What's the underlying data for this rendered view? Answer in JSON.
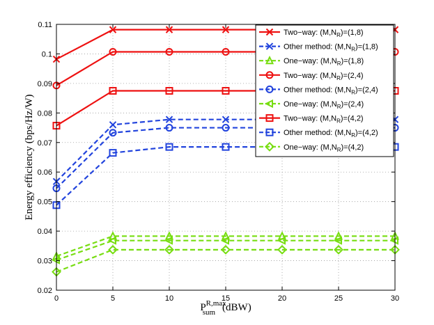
{
  "chart_data": {
    "type": "line",
    "title": "",
    "xlabel": {
      "main": "P",
      "superscript": "R,max",
      "subscript": "sum",
      "unit": "(dBW)"
    },
    "ylabel": "Energy efficiency (bps/Hz/W)",
    "x": [
      0,
      5,
      10,
      15,
      20,
      25,
      30
    ],
    "xlim": [
      0,
      30
    ],
    "ylim": [
      0.02,
      0.11
    ],
    "xticks": [
      "0",
      "5",
      "10",
      "15",
      "20",
      "25",
      "30"
    ],
    "yticks": [
      "0.02",
      "0.03",
      "0.04",
      "0.05",
      "0.06",
      "0.07",
      "0.08",
      "0.09",
      "0.1",
      "0.11"
    ],
    "grid": true,
    "legend_position": "top-right",
    "series": [
      {
        "name": "Two-way: (M,N_R)=(1,8)",
        "label_prefix": "Two−way: (M,N",
        "label_sub": "R",
        "label_suffix": ")=(1,8)",
        "color": "#ee1111",
        "dash": "solid",
        "marker": "x",
        "values": [
          0.0982,
          0.1082,
          0.1082,
          0.1082,
          0.1082,
          0.1082,
          0.1082
        ]
      },
      {
        "name": "Other method: (M,N_R)=(1,8)",
        "label_prefix": "Other method: (M,N",
        "label_sub": "R",
        "label_suffix": ")=(1,8)",
        "color": "#2244dd",
        "dash": "dashed",
        "marker": "x",
        "values": [
          0.0568,
          0.076,
          0.0778,
          0.0778,
          0.0778,
          0.0778,
          0.0778
        ]
      },
      {
        "name": "One-way: (M,N_R)=(1,8)",
        "label_prefix": "One−way: (M,N",
        "label_sub": "R",
        "label_suffix": ")=(1,8)",
        "color": "#77dd11",
        "dash": "dashed",
        "marker": "triangle-up",
        "values": [
          0.0315,
          0.0383,
          0.0383,
          0.0383,
          0.0383,
          0.0383,
          0.0383
        ]
      },
      {
        "name": "Two-way: (M,N_R)=(2,4)",
        "label_prefix": "Two−way: (M,N",
        "label_sub": "R",
        "label_suffix": ")=(2,4)",
        "color": "#ee1111",
        "dash": "solid",
        "marker": "circle",
        "values": [
          0.0893,
          0.1007,
          0.1007,
          0.1007,
          0.1007,
          0.1007,
          0.1007
        ]
      },
      {
        "name": "Other method: (M,N_R)=(2,4)",
        "label_prefix": "Other method: (M,N",
        "label_sub": "R",
        "label_suffix": ")=(2,4)",
        "color": "#2244dd",
        "dash": "dashed",
        "marker": "circle",
        "values": [
          0.0545,
          0.0733,
          0.075,
          0.075,
          0.075,
          0.075,
          0.075
        ]
      },
      {
        "name": "One-way: (M,N_R)=(2,4)",
        "label_prefix": "One−way: (M,N",
        "label_sub": "R",
        "label_suffix": ")=(2,4)",
        "color": "#77dd11",
        "dash": "dashed",
        "marker": "triangle-left",
        "values": [
          0.0302,
          0.0368,
          0.0368,
          0.0368,
          0.0368,
          0.0368,
          0.0368
        ]
      },
      {
        "name": "Two-way: (M,N_R)=(4,2)",
        "label_prefix": "Two−way: (M,N",
        "label_sub": "R",
        "label_suffix": ")=(4,2)",
        "color": "#ee1111",
        "dash": "solid",
        "marker": "square",
        "values": [
          0.0757,
          0.0875,
          0.0875,
          0.0875,
          0.0875,
          0.0875,
          0.0875
        ]
      },
      {
        "name": "Other method: (M,N_R)=(4,2)",
        "label_prefix": "Other method: (M,N",
        "label_sub": "R",
        "label_suffix": ")=(4,2)",
        "color": "#2244dd",
        "dash": "dashed",
        "marker": "square",
        "values": [
          0.0488,
          0.0665,
          0.0685,
          0.0685,
          0.0685,
          0.0685,
          0.0685
        ]
      },
      {
        "name": "One-way: (M,N_R)=(4,2)",
        "label_prefix": "One−way: (M,N",
        "label_sub": "R",
        "label_suffix": ")=(4,2)",
        "color": "#77dd11",
        "dash": "dashed",
        "marker": "diamond",
        "values": [
          0.0262,
          0.0337,
          0.0337,
          0.0337,
          0.0337,
          0.0337,
          0.0337
        ]
      }
    ]
  }
}
